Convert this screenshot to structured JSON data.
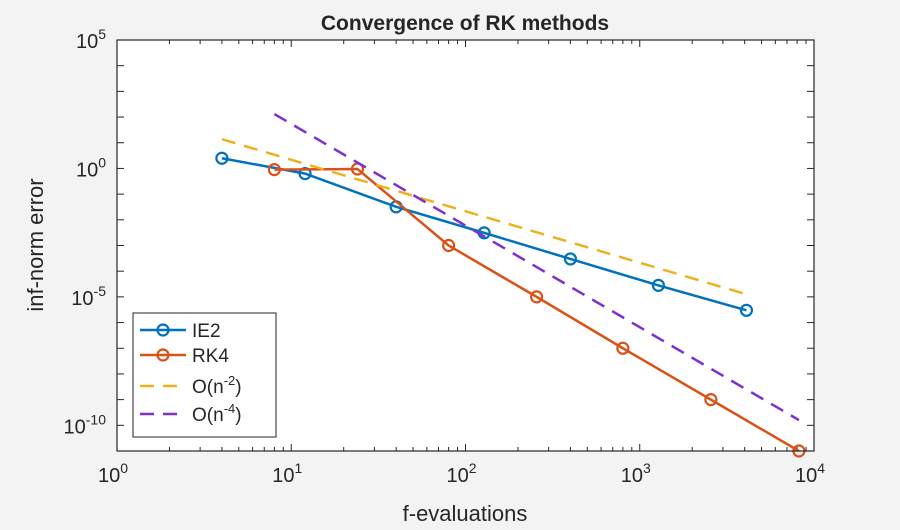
{
  "chart_data": {
    "type": "line",
    "title": "Convergence of RK methods",
    "xlabel": "f-evaluations",
    "ylabel": "inf-norm error",
    "xscale": "log",
    "yscale": "log",
    "xlim": [
      1,
      10000
    ],
    "ylim": [
      1e-11,
      100000
    ],
    "grid": false,
    "legend_position": "bottom-left",
    "xticks": [
      {
        "value": 1,
        "base": "10",
        "exp": "0"
      },
      {
        "value": 10,
        "base": "10",
        "exp": "1"
      },
      {
        "value": 100,
        "base": "10",
        "exp": "2"
      },
      {
        "value": 1000,
        "base": "10",
        "exp": "3"
      },
      {
        "value": 10000,
        "base": "10",
        "exp": "4"
      }
    ],
    "yticks": [
      {
        "value": 100000,
        "base": "10",
        "exp": "5"
      },
      {
        "value": 1,
        "base": "10",
        "exp": "0"
      },
      {
        "value": 1e-05,
        "base": "10",
        "exp": "-5"
      },
      {
        "value": 1e-10,
        "base": "10",
        "exp": "-10"
      }
    ],
    "series": [
      {
        "name": "IE2",
        "legend_base": "IE2",
        "legend_sup": "",
        "legend_tail": "",
        "color": "#0072BD",
        "style": "solid",
        "marker": "circle",
        "x": [
          4,
          12,
          40,
          128,
          400,
          1280,
          4096
        ],
        "y": [
          2.5,
          0.63,
          0.032,
          0.0031,
          0.0003,
          2.8e-05,
          3e-06
        ]
      },
      {
        "name": "RK4",
        "legend_base": "RK4",
        "legend_sup": "",
        "legend_tail": "",
        "color": "#D95319",
        "style": "solid",
        "marker": "circle",
        "x": [
          8,
          24,
          80,
          256,
          800,
          2560,
          8192
        ],
        "y": [
          0.9,
          0.95,
          0.001,
          1e-05,
          1e-07,
          1e-09,
          1e-11
        ]
      },
      {
        "name": "O(n-2)",
        "legend_base": "O(n",
        "legend_sup": "-2",
        "legend_tail": ")",
        "color": "#EDB120",
        "style": "dashed",
        "marker": "none",
        "x": [
          4,
          4096
        ],
        "y": [
          13.7,
          1.26e-05
        ]
      },
      {
        "name": "O(n-4)",
        "legend_base": "O(n",
        "legend_sup": "-4",
        "legend_tail": ")",
        "color": "#7E2FD1",
        "style": "dashed",
        "marker": "none",
        "x": [
          8,
          8192
        ],
        "y": [
          131,
          1.6e-10
        ]
      }
    ]
  }
}
